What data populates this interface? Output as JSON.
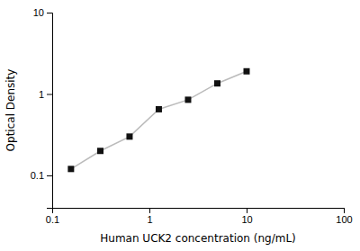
{
  "chart_data": {
    "type": "line",
    "xlabel": "Human UCK2 concentration (ng/mL)",
    "ylabel": "Optical Density",
    "x": [
      0.156,
      0.313,
      0.625,
      1.25,
      2.5,
      5.0,
      10.0
    ],
    "series": [
      {
        "values": [
          0.12,
          0.2,
          0.3,
          0.65,
          0.85,
          1.35,
          1.9
        ],
        "color": "#bbbbbb",
        "marker": "square",
        "colors": [
          "#111111",
          "#111111",
          "#111111",
          "#111111",
          "#111111",
          "#111111",
          "#111111"
        ]
      }
    ],
    "log": true,
    "xlim": [
      0.1,
      100
    ],
    "ylim": [
      0.04,
      10
    ],
    "xticks": [
      0.1,
      1,
      10,
      100
    ],
    "yticks": [
      0.1,
      1,
      10
    ],
    "grid": false
  }
}
